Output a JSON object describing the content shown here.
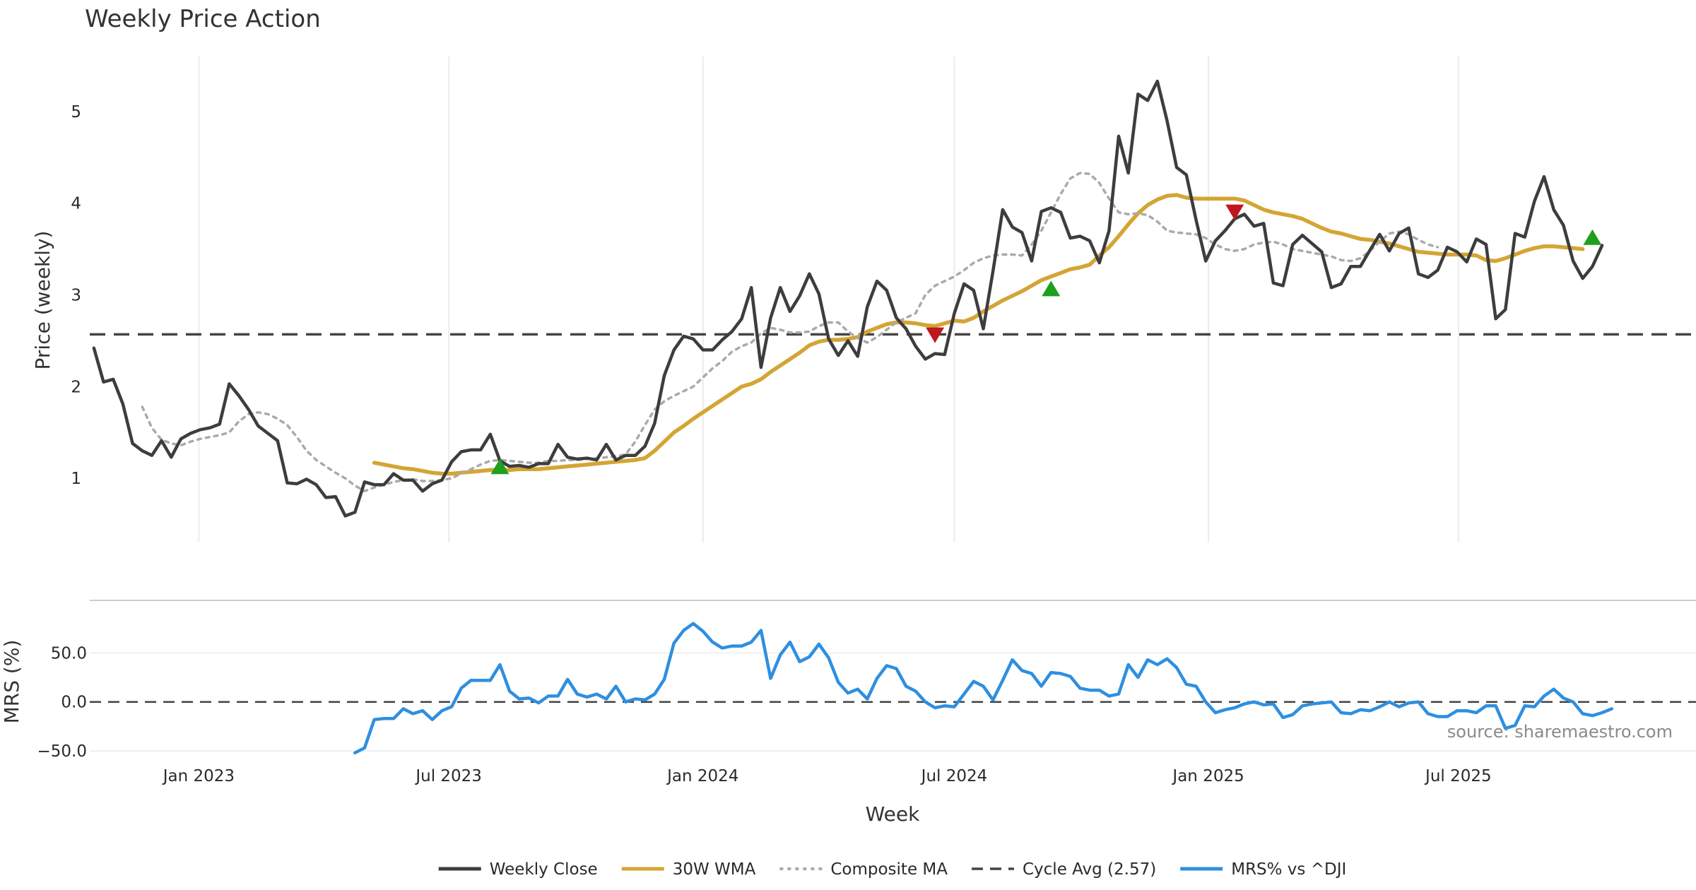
{
  "chart_data": {
    "type": "line",
    "title": "Weekly Price Action",
    "xlabel": "Week",
    "source": "source: sharemaestro.com",
    "x_ticks": [
      "Jan 2023",
      "Jul 2023",
      "Jan 2024",
      "Jul 2024",
      "Jan 2025",
      "Jul 2025"
    ],
    "x_start": "2022-10-17",
    "x_range": [
      "2022-10-14",
      "2025-12-20"
    ],
    "upper": {
      "ylabel": "Price (weekly)",
      "ylim": [
        0.3,
        5.6
      ],
      "y_ticks": [
        1,
        2,
        3,
        4,
        5
      ],
      "grid_x": true,
      "cycle_avg": 2.57,
      "series": [
        {
          "name": "Weekly Close",
          "color": "#3d3d3d",
          "style": "solid",
          "x_start": "2022-10-17",
          "values": [
            2.42,
            2.05,
            2.08,
            1.81,
            1.38,
            1.3,
            1.25,
            1.41,
            1.23,
            1.43,
            1.49,
            1.53,
            1.55,
            1.59,
            2.03,
            1.9,
            1.75,
            1.57,
            1.49,
            1.41,
            0.95,
            0.94,
            0.99,
            0.93,
            0.79,
            0.8,
            0.59,
            0.63,
            0.96,
            0.93,
            0.93,
            1.05,
            0.98,
            0.98,
            0.86,
            0.94,
            0.98,
            1.18,
            1.29,
            1.31,
            1.31,
            1.48,
            1.19,
            1.13,
            1.14,
            1.12,
            1.16,
            1.16,
            1.37,
            1.23,
            1.21,
            1.22,
            1.2,
            1.37,
            1.2,
            1.25,
            1.25,
            1.35,
            1.6,
            2.12,
            2.4,
            2.55,
            2.52,
            2.4,
            2.4,
            2.51,
            2.6,
            2.74,
            3.08,
            2.21,
            2.75,
            3.08,
            2.82,
            2.99,
            3.23,
            3.01,
            2.52,
            2.34,
            2.5,
            2.33,
            2.87,
            3.15,
            3.05,
            2.75,
            2.63,
            2.44,
            2.3,
            2.36,
            2.35,
            2.8,
            3.12,
            3.05,
            2.63,
            3.26,
            3.93,
            3.74,
            3.68,
            3.37,
            3.91,
            3.95,
            3.9,
            3.62,
            3.64,
            3.59,
            3.35,
            3.7,
            4.73,
            4.33,
            5.19,
            5.12,
            5.33,
            4.9,
            4.39,
            4.31,
            3.82,
            3.37,
            3.59,
            3.7,
            3.83,
            3.88,
            3.75,
            3.78,
            3.13,
            3.1,
            3.55,
            3.65,
            3.56,
            3.47,
            3.08,
            3.12,
            3.31,
            3.31,
            3.49,
            3.66,
            3.48,
            3.67,
            3.73,
            3.23,
            3.19,
            3.27,
            3.52,
            3.47,
            3.36,
            3.61,
            3.55,
            2.74,
            2.84,
            3.67,
            3.63,
            4.02,
            4.29,
            3.93,
            3.76,
            3.37,
            3.18,
            3.31,
            3.54
          ]
        },
        {
          "name": "30W WMA",
          "color": "#d4a535",
          "style": "solid",
          "x_start": "2023-05-08",
          "values": [
            1.17,
            1.15,
            1.13,
            1.11,
            1.1,
            1.08,
            1.06,
            1.05,
            1.05,
            1.06,
            1.07,
            1.08,
            1.09,
            1.09,
            1.09,
            1.1,
            1.1,
            1.1,
            1.11,
            1.12,
            1.13,
            1.14,
            1.15,
            1.16,
            1.17,
            1.18,
            1.19,
            1.2,
            1.22,
            1.3,
            1.4,
            1.5,
            1.57,
            1.65,
            1.72,
            1.79,
            1.86,
            1.93,
            2.0,
            2.03,
            2.08,
            2.16,
            2.23,
            2.3,
            2.37,
            2.45,
            2.49,
            2.51,
            2.51,
            2.52,
            2.54,
            2.6,
            2.64,
            2.68,
            2.7,
            2.7,
            2.69,
            2.67,
            2.66,
            2.69,
            2.72,
            2.71,
            2.75,
            2.82,
            2.88,
            2.94,
            2.99,
            3.04,
            3.1,
            3.16,
            3.2,
            3.24,
            3.28,
            3.3,
            3.33,
            3.43,
            3.52,
            3.64,
            3.77,
            3.89,
            3.98,
            4.04,
            4.08,
            4.09,
            4.06,
            4.05,
            4.05,
            4.05,
            4.05,
            4.05,
            4.03,
            3.98,
            3.93,
            3.9,
            3.88,
            3.86,
            3.83,
            3.78,
            3.73,
            3.69,
            3.67,
            3.64,
            3.61,
            3.6,
            3.58,
            3.56,
            3.53,
            3.5,
            3.47,
            3.46,
            3.45,
            3.44,
            3.44,
            3.44,
            3.43,
            3.38,
            3.37,
            3.4,
            3.44,
            3.48,
            3.51,
            3.53,
            3.53,
            3.52,
            3.51,
            3.5
          ]
        },
        {
          "name": "Composite MA",
          "color": "#aaaaaa",
          "style": "dotted",
          "x_start": "2022-11-21",
          "values": [
            1.78,
            1.55,
            1.42,
            1.38,
            1.36,
            1.4,
            1.43,
            1.45,
            1.47,
            1.5,
            1.62,
            1.7,
            1.72,
            1.7,
            1.65,
            1.58,
            1.45,
            1.3,
            1.2,
            1.13,
            1.06,
            1.0,
            0.92,
            0.86,
            0.9,
            0.93,
            0.96,
            0.98,
            0.99,
            0.97,
            0.97,
            0.98,
            1.0,
            1.05,
            1.1,
            1.15,
            1.19,
            1.2,
            1.19,
            1.18,
            1.17,
            1.17,
            1.19,
            1.19,
            1.2,
            1.2,
            1.21,
            1.22,
            1.23,
            1.24,
            1.26,
            1.4,
            1.58,
            1.75,
            1.84,
            1.9,
            1.95,
            2.0,
            2.1,
            2.2,
            2.28,
            2.38,
            2.44,
            2.48,
            2.58,
            2.64,
            2.62,
            2.59,
            2.59,
            2.6,
            2.66,
            2.7,
            2.7,
            2.6,
            2.53,
            2.48,
            2.54,
            2.62,
            2.7,
            2.75,
            2.8,
            3.0,
            3.1,
            3.15,
            3.2,
            3.27,
            3.35,
            3.4,
            3.43,
            3.44,
            3.44,
            3.43,
            3.55,
            3.7,
            3.9,
            4.1,
            4.27,
            4.33,
            4.32,
            4.22,
            4.05,
            3.9,
            3.88,
            3.89,
            3.87,
            3.8,
            3.7,
            3.68,
            3.67,
            3.66,
            3.62,
            3.55,
            3.5,
            3.48,
            3.5,
            3.55,
            3.57,
            3.58,
            3.55,
            3.5,
            3.48,
            3.46,
            3.44,
            3.42,
            3.38,
            3.37,
            3.4,
            3.48,
            3.58,
            3.67,
            3.69,
            3.66,
            3.6,
            3.55,
            3.52
          ]
        }
      ],
      "signals_up": [
        {
          "x": "2023-08-07",
          "y": 1.13
        },
        {
          "x": "2024-09-09",
          "y": 3.07
        },
        {
          "x": "2025-10-06",
          "y": 3.63
        }
      ],
      "signals_down": [
        {
          "x": "2024-06-17",
          "y": 2.56
        },
        {
          "x": "2025-01-20",
          "y": 3.9
        }
      ]
    },
    "lower": {
      "ylabel": "MRS (%)",
      "ylim": [
        -55,
        100
      ],
      "y_ticks": [
        "50.0",
        "0.0",
        "−50.0"
      ],
      "y_tick_values": [
        50,
        0,
        -50
      ],
      "zero_line": true,
      "series": [
        {
          "name": "MRS% vs ^DJI",
          "color": "#2e8fe0",
          "style": "solid",
          "x_start": "2023-04-24",
          "values": [
            -52,
            -47,
            -18,
            -17,
            -17,
            -7,
            -12,
            -9,
            -18,
            -9,
            -5,
            14,
            22,
            22,
            22,
            38,
            11,
            3,
            4,
            -1,
            6,
            6,
            23,
            8,
            5,
            8,
            3,
            16,
            0,
            3,
            2,
            8,
            23,
            60,
            73,
            80,
            72,
            61,
            55,
            57,
            57,
            61,
            73,
            24,
            48,
            61,
            41,
            46,
            59,
            45,
            20,
            9,
            13,
            3,
            24,
            37,
            34,
            16,
            11,
            0,
            -6,
            -4,
            -5,
            8,
            21,
            16,
            2,
            22,
            43,
            32,
            29,
            16,
            30,
            29,
            26,
            14,
            12,
            12,
            6,
            8,
            38,
            25,
            43,
            38,
            44,
            35,
            18,
            16,
            0,
            -11,
            -8,
            -6,
            -2,
            0,
            -3,
            -2,
            -16,
            -13,
            -4,
            -2,
            -1,
            0,
            -11,
            -12,
            -8,
            -9,
            -5,
            0,
            -5,
            -1,
            0,
            -12,
            -15,
            -15,
            -9,
            -9,
            -11,
            -4,
            -4,
            -27,
            -24,
            -4,
            -5,
            6,
            13,
            4,
            0,
            -12,
            -14,
            -11,
            -7
          ]
        }
      ]
    },
    "legend": {
      "placement": "bottom-center",
      "items": [
        {
          "label": "Weekly Close",
          "color": "#3d3d3d",
          "style": "solid"
        },
        {
          "label": "30W WMA",
          "color": "#d4a535",
          "style": "solid"
        },
        {
          "label": "Composite MA",
          "color": "#aaaaaa",
          "style": "dotted"
        },
        {
          "label": "Cycle Avg (2.57)",
          "color": "#444444",
          "style": "dashed"
        },
        {
          "label": "MRS% vs ^DJI",
          "color": "#2e8fe0",
          "style": "solid"
        }
      ]
    }
  }
}
